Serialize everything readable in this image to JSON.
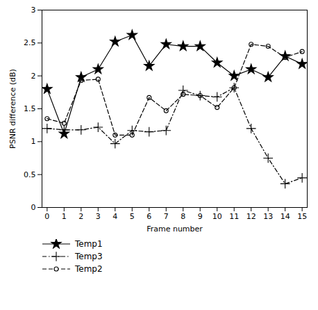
{
  "chart_data": {
    "type": "line",
    "x": [
      0,
      1,
      2,
      3,
      4,
      5,
      6,
      7,
      8,
      9,
      10,
      11,
      12,
      13,
      14,
      15
    ],
    "series": [
      {
        "name": "Temp1",
        "color": "#000000",
        "marker": "star",
        "line_style": "solid",
        "values": [
          1.8,
          1.12,
          1.98,
          2.1,
          2.52,
          2.62,
          2.15,
          2.48,
          2.45,
          2.45,
          2.2,
          2.0,
          2.1,
          1.98,
          2.3,
          2.18
        ]
      },
      {
        "name": "Temp3",
        "color": "#000000",
        "marker": "plus",
        "line_style": "dashdot",
        "values": [
          1.2,
          1.18,
          1.18,
          1.22,
          0.97,
          1.17,
          1.15,
          1.17,
          1.78,
          1.7,
          1.68,
          1.82,
          1.2,
          0.75,
          0.36,
          0.45
        ]
      },
      {
        "name": "Temp2",
        "color": "#000000",
        "marker": "circle",
        "line_style": "dashed",
        "values": [
          1.35,
          1.28,
          1.93,
          1.95,
          1.1,
          1.1,
          1.67,
          1.47,
          1.72,
          1.7,
          1.52,
          1.82,
          2.48,
          2.45,
          2.28,
          2.37
        ]
      }
    ],
    "xlabel": "Frame number",
    "ylabel": "PSNR difference (dB)",
    "xlim": [
      -0.3,
      15.3
    ],
    "xticks": [
      0,
      1,
      2,
      3,
      4,
      5,
      6,
      7,
      8,
      9,
      10,
      11,
      12,
      13,
      14,
      15
    ],
    "ylim": [
      0,
      3
    ],
    "yticks": [
      0,
      0.5,
      1,
      1.5,
      2,
      2.5,
      3
    ],
    "grid": false,
    "legend": "bottom"
  }
}
